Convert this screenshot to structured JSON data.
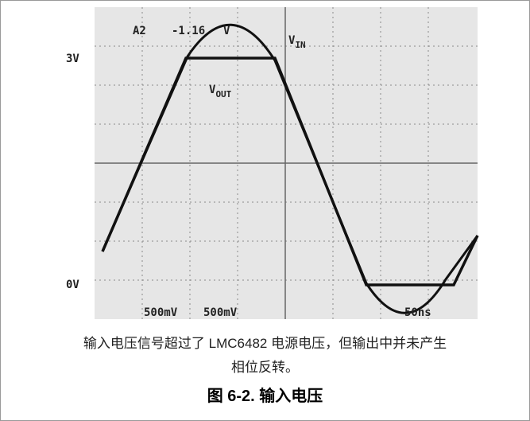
{
  "figure": {
    "scope": {
      "level_high": "3V",
      "level_low": "0V",
      "channel": "A2",
      "readout": "-1.16",
      "readout_unit": "V",
      "vin": {
        "main": "V",
        "sub": "IN"
      },
      "vout": {
        "main": "V",
        "sub": "OUT"
      },
      "scale_1": "500mV",
      "scale_2": "500mV",
      "timebase": "50ns"
    },
    "caption": [
      "输入电压信号超过了 LMC6482 电源电压，但输出中并未产生",
      "相位反转。"
    ],
    "title": "图 6-2. 输入电压"
  }
}
